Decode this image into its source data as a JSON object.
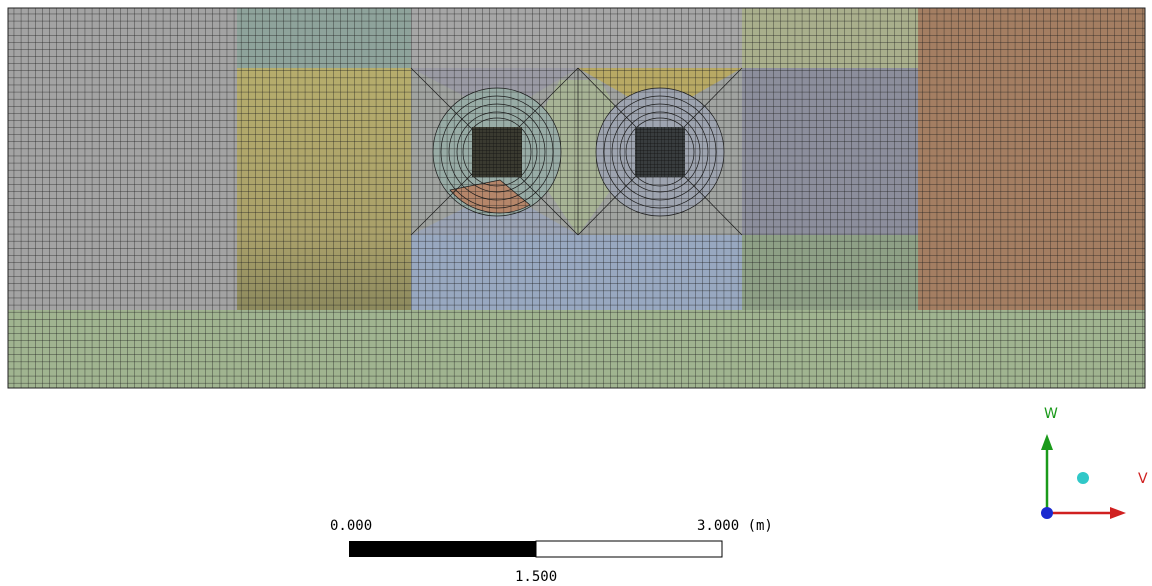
{
  "scale_bar": {
    "start_label": "0.000",
    "end_label": "3.000 (m)",
    "mid_label": "1.500"
  },
  "axes": {
    "up_label": "W",
    "right_label": "V"
  }
}
